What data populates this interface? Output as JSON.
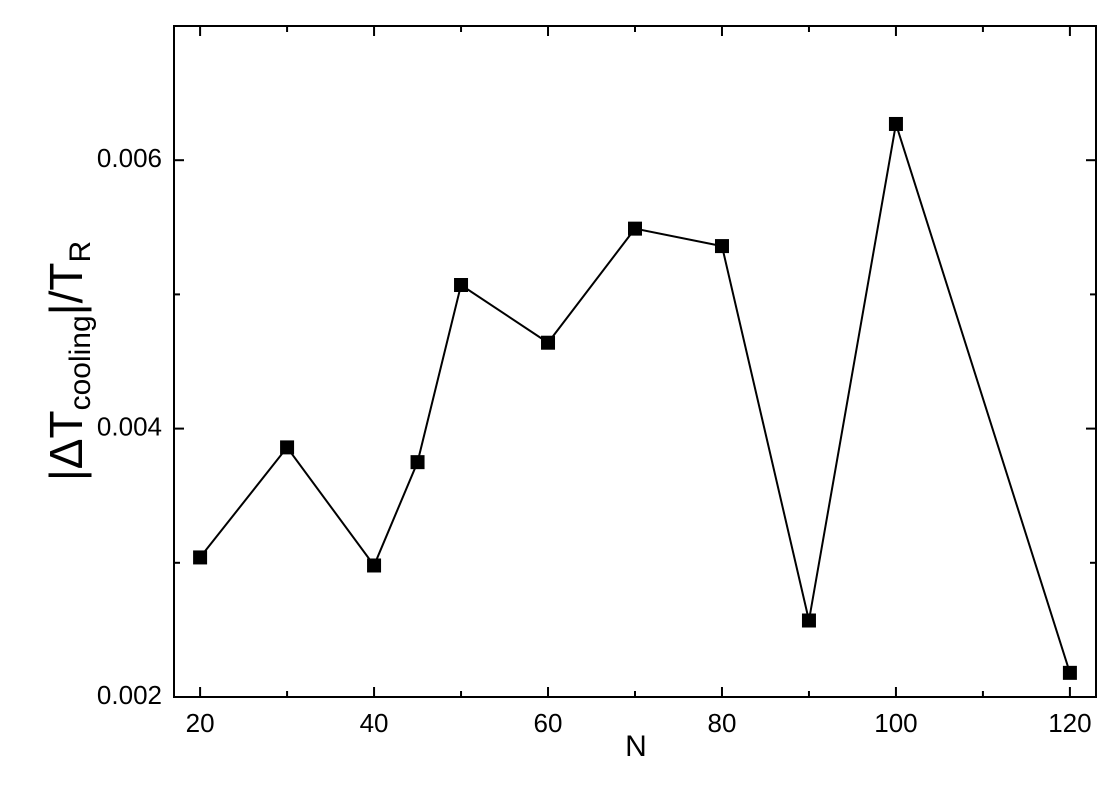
{
  "chart_data": {
    "type": "line",
    "x_label": "N",
    "y_label": {
      "prefix": "|ΔT",
      "sub1": "cooling",
      "mid": "|/T",
      "sub2": "R"
    },
    "x": [
      20,
      30,
      40,
      45,
      50,
      60,
      70,
      80,
      90,
      100,
      120
    ],
    "series": [
      {
        "color": "#000000",
        "values": [
          0.00304,
          0.00386,
          0.00298,
          0.00375,
          0.00507,
          0.00464,
          0.00549,
          0.00536,
          0.00257,
          0.00627,
          0.00218
        ]
      }
    ],
    "xlim": [
      17,
      123
    ],
    "ylim": [
      0.002,
      0.007
    ],
    "xticks": [
      20,
      40,
      60,
      80,
      100,
      120
    ],
    "xminor_ticks": [
      30,
      50,
      70,
      90,
      110
    ],
    "yticks": [
      0.002,
      0.004,
      0.006
    ],
    "yminor_ticks": [
      0.003,
      0.005
    ]
  }
}
